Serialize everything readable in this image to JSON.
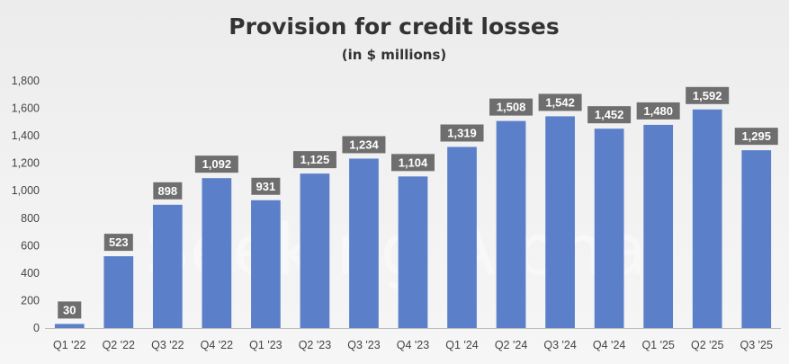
{
  "chart_data": {
    "type": "bar",
    "title": "Provision for credit losses",
    "subtitle": "(in $ millions)",
    "categories": [
      "Q1 '22",
      "Q2 '22",
      "Q3 '22",
      "Q4 '22",
      "Q1 '23",
      "Q2 '23",
      "Q3 '23",
      "Q4 '23",
      "Q1 '24",
      "Q2 '24",
      "Q3 '24",
      "Q4 '24",
      "Q1 '25",
      "Q2 '25",
      "Q3 '25"
    ],
    "values": [
      30,
      523,
      898,
      1092,
      931,
      1125,
      1234,
      1104,
      1319,
      1508,
      1542,
      1452,
      1480,
      1592,
      1295
    ],
    "value_labels": [
      "30",
      "523",
      "898",
      "1,092",
      "931",
      "1,125",
      "1,234",
      "1,104",
      "1,319",
      "1,508",
      "1,542",
      "1,452",
      "1,480",
      "1,592",
      "1,295"
    ],
    "yticks": [
      "0",
      "200",
      "400",
      "600",
      "800",
      "1,000",
      "1,200",
      "1,400",
      "1,600",
      "1,800"
    ],
    "ylim": [
      0,
      1800
    ],
    "grid": false,
    "legend": "none",
    "bar_color": "#5b80c9",
    "label_box_color": "#6e6e6e",
    "watermark": "Seeking Alpha"
  }
}
